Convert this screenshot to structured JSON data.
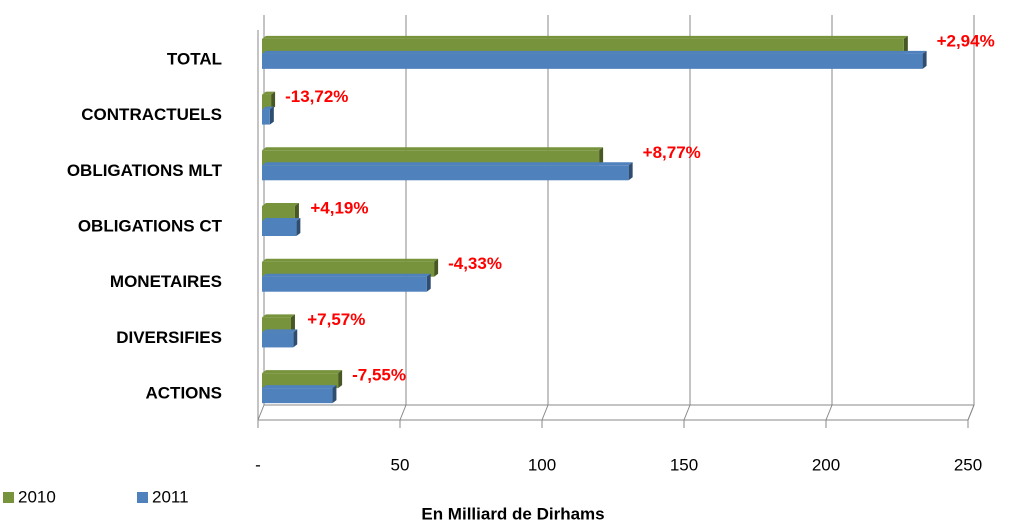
{
  "chart_data": {
    "type": "bar",
    "orientation": "horizontal",
    "categories": [
      "TOTAL",
      "CONTRACTUELS",
      "OBLIGATIONS MLT",
      "OBLIGATIONS CT",
      "MONETAIRES",
      "DIVERSIFIES",
      "ACTIONS"
    ],
    "series": [
      {
        "name": "2010",
        "color": "#77933c",
        "values": [
          226,
          3.2,
          118.7,
          11.6,
          60.6,
          10.2,
          26.8
        ]
      },
      {
        "name": "2011",
        "color": "#4f81bd",
        "values": [
          232.6,
          2.76,
          129.1,
          12.1,
          58,
          11,
          24.8
        ]
      }
    ],
    "annotations": [
      "+2,94%",
      "-13,72%",
      "+8,77%",
      "+4,19%",
      "-4,33%",
      "+7,57%",
      "-7,55%"
    ],
    "xlabel": "En Milliard de Dirhams",
    "xlim": [
      0,
      250
    ],
    "xticks": [
      {
        "value": 0,
        "label": "-"
      },
      50,
      100,
      150,
      200,
      250
    ],
    "grid": true,
    "legend": "bottom-left"
  }
}
